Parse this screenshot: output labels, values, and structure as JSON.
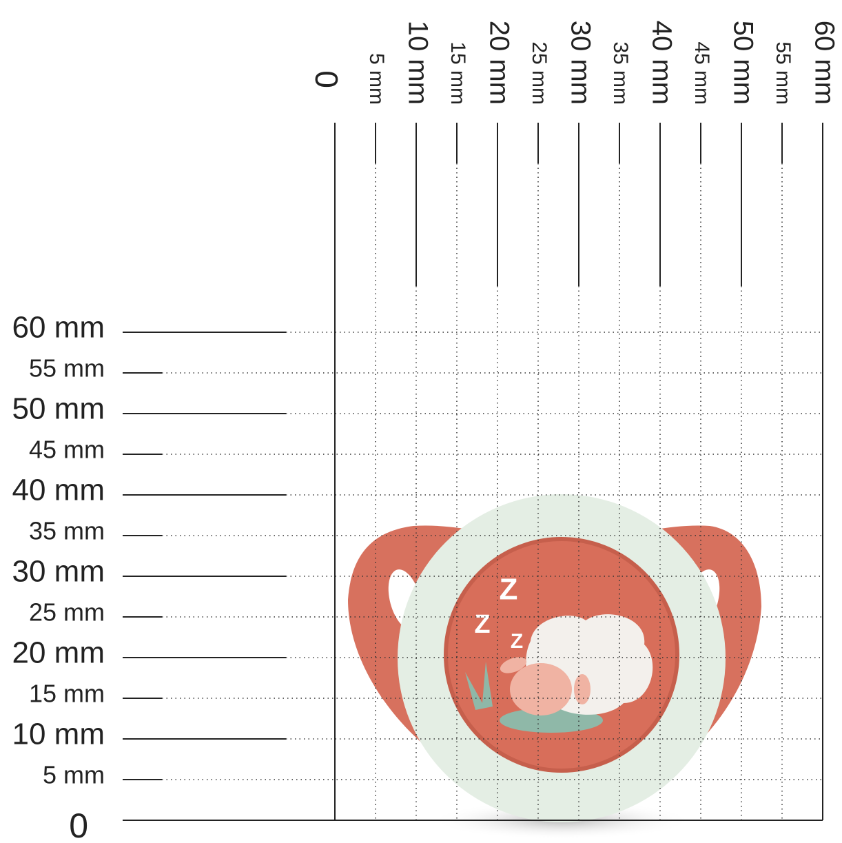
{
  "x_ruler": {
    "labels": [
      "0",
      "5 mm",
      "10 mm",
      "15 mm",
      "20 mm",
      "25 mm",
      "30 mm",
      "35 mm",
      "40 mm",
      "45 mm",
      "50 mm",
      "55 mm",
      "60 mm"
    ]
  },
  "y_ruler": {
    "labels": [
      "0",
      "5 mm",
      "10 mm",
      "15 mm",
      "20 mm",
      "25 mm",
      "30 mm",
      "35 mm",
      "40 mm",
      "45 mm",
      "50 mm",
      "55 mm",
      "60 mm"
    ]
  },
  "illustration": {
    "sleep_letters": [
      "Z",
      "Z",
      "Z"
    ]
  }
}
